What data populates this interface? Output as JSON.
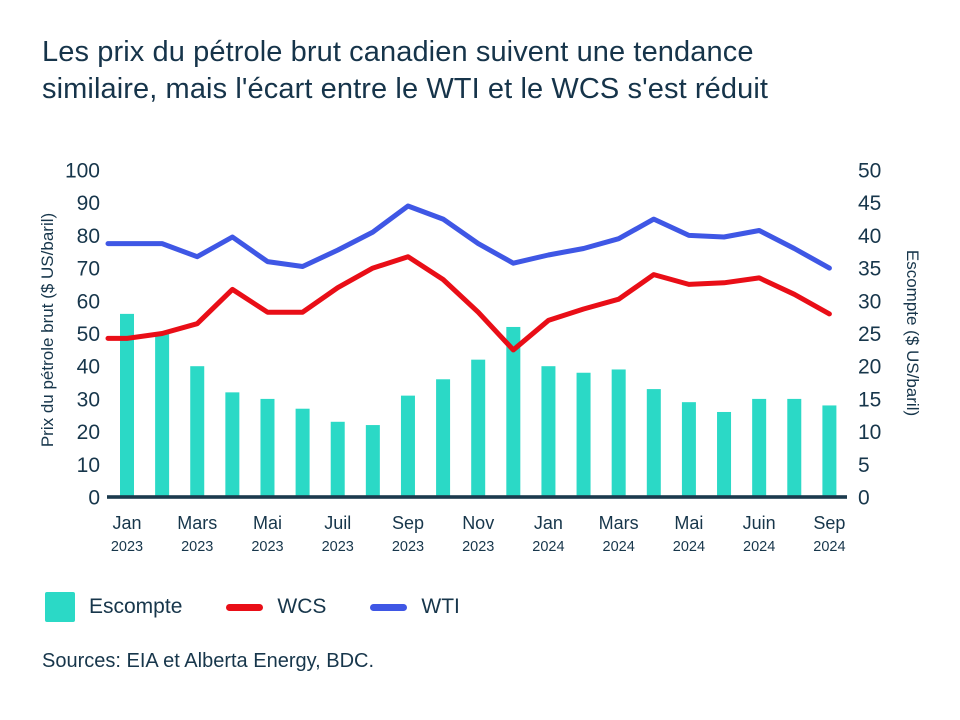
{
  "title": {
    "line1": "Les prix du pétrole brut canadien suivent une tendance",
    "line2": "similaire, mais l'écart entre le WTI et le WCS s'est réduit"
  },
  "source_note": "Sources: EIA et Alberta Energy, BDC.",
  "colors": {
    "text_navy": "#17364b",
    "axis_line": "#1b3a4d",
    "escompte_teal": "#2bd9c6",
    "wcs_red": "#e90e17",
    "wti_blue": "#3f57e5",
    "background": "#ffffff"
  },
  "chart_data": {
    "type": "combo-bar-line",
    "grid": false,
    "legend_position": "bottom-left",
    "x_categories": [
      {
        "month": "Jan",
        "year": "2023"
      },
      {
        "month": "",
        "year": ""
      },
      {
        "month": "Mars",
        "year": "2023"
      },
      {
        "month": "",
        "year": ""
      },
      {
        "month": "Mai",
        "year": "2023"
      },
      {
        "month": "",
        "year": ""
      },
      {
        "month": "Juil",
        "year": "2023"
      },
      {
        "month": "",
        "year": ""
      },
      {
        "month": "Sep",
        "year": "2023"
      },
      {
        "month": "",
        "year": ""
      },
      {
        "month": "Nov",
        "year": "2023"
      },
      {
        "month": "",
        "year": ""
      },
      {
        "month": "Jan",
        "year": "2024"
      },
      {
        "month": "",
        "year": ""
      },
      {
        "month": "Mars",
        "year": "2024"
      },
      {
        "month": "",
        "year": ""
      },
      {
        "month": "Mai",
        "year": "2024"
      },
      {
        "month": "",
        "year": ""
      },
      {
        "month": "Juin",
        "year": "2024"
      },
      {
        "month": "",
        "year": ""
      },
      {
        "month": "Sep",
        "year": "2024"
      }
    ],
    "series": [
      {
        "name": "Escompte",
        "type": "bar",
        "axis": "right",
        "color": "#2bd9c6",
        "values": [
          28,
          25,
          20,
          16,
          15,
          13.5,
          11.5,
          11,
          15.5,
          18,
          21,
          26,
          20,
          19,
          19.5,
          16.5,
          14.5,
          13,
          15,
          15,
          14
        ]
      },
      {
        "name": "WCS",
        "type": "line",
        "axis": "left",
        "color": "#e90e17",
        "values": [
          48.5,
          50,
          53,
          63.5,
          56.5,
          56.5,
          64,
          70,
          73.5,
          66.5,
          56.5,
          45,
          54,
          57.5,
          60.5,
          68,
          65,
          65.5,
          67,
          62,
          56
        ]
      },
      {
        "name": "WTI",
        "type": "line",
        "axis": "left",
        "color": "#3f57e5",
        "values": [
          77.5,
          77.5,
          73.5,
          79.5,
          72,
          70.5,
          75.5,
          81,
          89,
          85,
          77.5,
          71.5,
          74,
          76,
          79,
          85,
          80,
          79.5,
          81.5,
          76,
          70
        ]
      }
    ],
    "left_axis": {
      "title": "Prix du pétrole brut ($ US/baril)",
      "min": 0,
      "max": 100,
      "step": 10
    },
    "right_axis": {
      "title": "Escompte ($ US/baril)",
      "min": 0,
      "max": 50,
      "step": 5
    }
  }
}
